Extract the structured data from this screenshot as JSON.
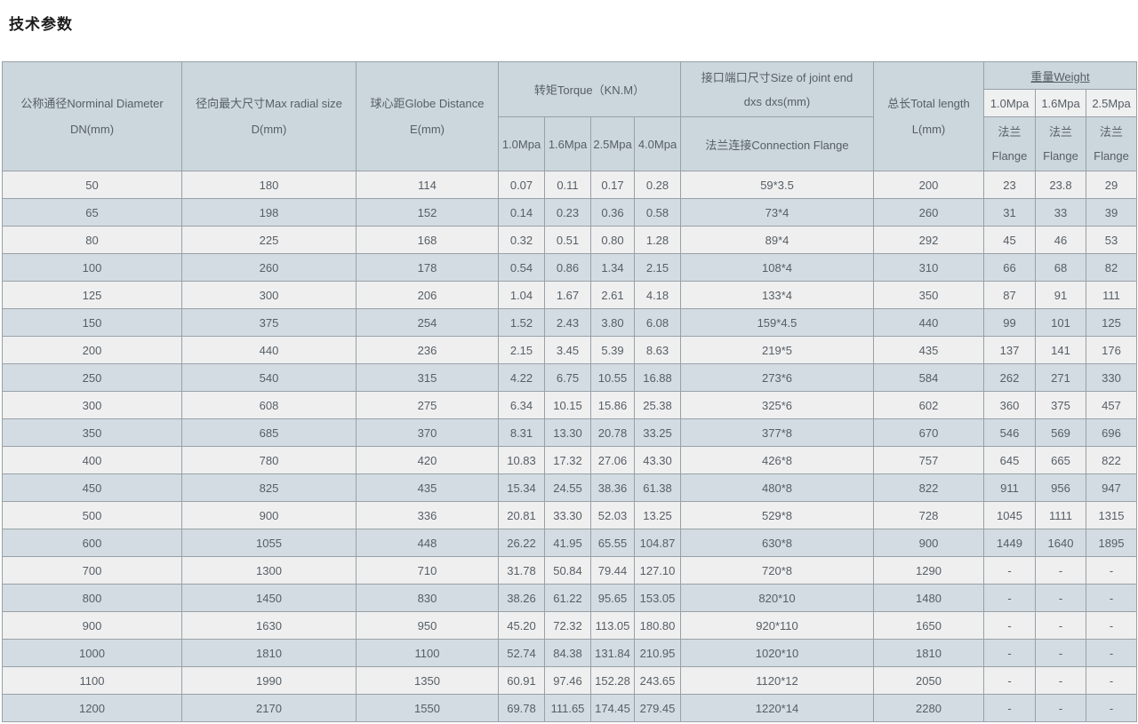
{
  "page": {
    "title": "技术参数"
  },
  "table": {
    "headers": {
      "dn": {
        "line1": "公称通径Norminal Diameter",
        "line2": "DN(mm)"
      },
      "d": {
        "line1": "径向最大尺寸Max radial size",
        "line2": "D(mm)"
      },
      "e": {
        "line1": "球心距Globe Distance",
        "line2": "E(mm)"
      },
      "torque": {
        "title": "转矩Torque（KN.M）",
        "subs": [
          "1.0Mpa",
          "1.6Mpa",
          "2.5Mpa",
          "4.0Mpa"
        ]
      },
      "joint": {
        "line1": "接口端口尺寸Size of joint end",
        "line2": "dxs dxs(mm)",
        "sub": "法兰连接Connection Flange"
      },
      "length": {
        "line1": "总长Total length",
        "line2": "L(mm)"
      },
      "weight": {
        "title": "重量Weight",
        "subs": [
          "1.0Mpa",
          "1.6Mpa",
          "2.5Mpa"
        ],
        "flange_line1": "法兰",
        "flange_line2": "Flange"
      }
    },
    "rows": [
      [
        "50",
        "180",
        "114",
        "0.07",
        "0.11",
        "0.17",
        "0.28",
        "59*3.5",
        "200",
        "23",
        "23.8",
        "29"
      ],
      [
        "65",
        "198",
        "152",
        "0.14",
        "0.23",
        "0.36",
        "0.58",
        "73*4",
        "260",
        "31",
        "33",
        "39"
      ],
      [
        "80",
        "225",
        "168",
        "0.32",
        "0.51",
        "0.80",
        "1.28",
        "89*4",
        "292",
        "45",
        "46",
        "53"
      ],
      [
        "100",
        "260",
        "178",
        "0.54",
        "0.86",
        "1.34",
        "2.15",
        "108*4",
        "310",
        "66",
        "68",
        "82"
      ],
      [
        "125",
        "300",
        "206",
        "1.04",
        "1.67",
        "2.61",
        "4.18",
        "133*4",
        "350",
        "87",
        "91",
        "111"
      ],
      [
        "150",
        "375",
        "254",
        "1.52",
        "2.43",
        "3.80",
        "6.08",
        "159*4.5",
        "440",
        "99",
        "101",
        "125"
      ],
      [
        "200",
        "440",
        "236",
        "2.15",
        "3.45",
        "5.39",
        "8.63",
        "219*5",
        "435",
        "137",
        "141",
        "176"
      ],
      [
        "250",
        "540",
        "315",
        "4.22",
        "6.75",
        "10.55",
        "16.88",
        "273*6",
        "584",
        "262",
        "271",
        "330"
      ],
      [
        "300",
        "608",
        "275",
        "6.34",
        "10.15",
        "15.86",
        "25.38",
        "325*6",
        "602",
        "360",
        "375",
        "457"
      ],
      [
        "350",
        "685",
        "370",
        "8.31",
        "13.30",
        "20.78",
        "33.25",
        "377*8",
        "670",
        "546",
        "569",
        "696"
      ],
      [
        "400",
        "780",
        "420",
        "10.83",
        "17.32",
        "27.06",
        "43.30",
        "426*8",
        "757",
        "645",
        "665",
        "822"
      ],
      [
        "450",
        "825",
        "435",
        "15.34",
        "24.55",
        "38.36",
        "61.38",
        "480*8",
        "822",
        "911",
        "956",
        "947"
      ],
      [
        "500",
        "900",
        "336",
        "20.81",
        "33.30",
        "52.03",
        "13.25",
        "529*8",
        "728",
        "1045",
        "1111",
        "1315"
      ],
      [
        "600",
        "1055",
        "448",
        "26.22",
        "41.95",
        "65.55",
        "104.87",
        "630*8",
        "900",
        "1449",
        "1640",
        "1895"
      ],
      [
        "700",
        "1300",
        "710",
        "31.78",
        "50.84",
        "79.44",
        "127.10",
        "720*8",
        "1290",
        "-",
        "-",
        "-"
      ],
      [
        "800",
        "1450",
        "830",
        "38.26",
        "61.22",
        "95.65",
        "153.05",
        "820*10",
        "1480",
        "-",
        "-",
        "-"
      ],
      [
        "900",
        "1630",
        "950",
        "45.20",
        "72.32",
        "113.05",
        "180.80",
        "920*110",
        "1650",
        "-",
        "-",
        "-"
      ],
      [
        "1000",
        "1810",
        "1100",
        "52.74",
        "84.38",
        "131.84",
        "210.95",
        "1020*10",
        "1810",
        "-",
        "-",
        "-"
      ],
      [
        "1100",
        "1990",
        "1350",
        "60.91",
        "97.46",
        "152.28",
        "243.65",
        "1120*12",
        "2050",
        "-",
        "-",
        "-"
      ],
      [
        "1200",
        "2170",
        "1550",
        "69.78",
        "111.65",
        "174.45",
        "279.45",
        "1220*14",
        "2280",
        "-",
        "-",
        "-"
      ]
    ]
  },
  "colors": {
    "header_bg": "#ccd6dd",
    "row_odd_bg": "#efefef",
    "row_even_bg": "#d3dce2",
    "header_light_cell_bg": "#eff0f0",
    "border": "#98a1a8",
    "text": "#565e66",
    "title_text": "#1c1c1c"
  }
}
